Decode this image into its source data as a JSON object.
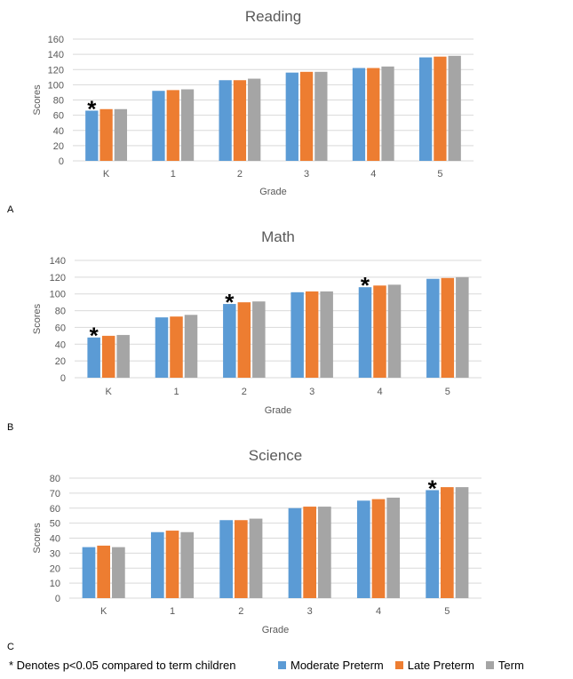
{
  "colors": {
    "moderate": "#5B9BD5",
    "late": "#ED7D31",
    "term": "#A5A5A5",
    "grid": "#D9D9D9",
    "text": "#595959"
  },
  "panels": [
    "A",
    "B",
    "C"
  ],
  "footnote": "* Denotes p<0.05 compared to term children",
  "legend": [
    {
      "name": "Moderate Preterm",
      "color": "#5B9BD5"
    },
    {
      "name": "Late Preterm",
      "color": "#ED7D31"
    },
    {
      "name": "Term",
      "color": "#A5A5A5"
    }
  ],
  "chart_data": [
    {
      "type": "bar",
      "title": "Reading",
      "xlabel": "Grade",
      "ylabel": "Scores",
      "ylim": [
        0,
        160
      ],
      "yticks": [
        0,
        20,
        40,
        60,
        80,
        100,
        120,
        140,
        160
      ],
      "grid": true,
      "categories": [
        "K",
        "1",
        "2",
        "3",
        "4",
        "5"
      ],
      "series": [
        {
          "name": "Moderate Preterm",
          "values": [
            66,
            92,
            106,
            116,
            122,
            136
          ]
        },
        {
          "name": "Late Preterm",
          "values": [
            68,
            93,
            106,
            117,
            122,
            137
          ]
        },
        {
          "name": "Term",
          "values": [
            68,
            94,
            108,
            117,
            124,
            138
          ]
        }
      ],
      "significant": [
        "K"
      ],
      "annotation": "*"
    },
    {
      "type": "bar",
      "title": "Math",
      "xlabel": "Grade",
      "ylabel": "Scores",
      "ylim": [
        0,
        140
      ],
      "yticks": [
        0,
        20,
        40,
        60,
        80,
        100,
        120,
        140
      ],
      "grid": true,
      "categories": [
        "K",
        "1",
        "2",
        "3",
        "4",
        "5"
      ],
      "series": [
        {
          "name": "Moderate Preterm",
          "values": [
            48,
            72,
            88,
            102,
            108,
            118
          ]
        },
        {
          "name": "Late Preterm",
          "values": [
            50,
            73,
            90,
            103,
            110,
            119
          ]
        },
        {
          "name": "Term",
          "values": [
            51,
            75,
            91,
            103,
            111,
            120
          ]
        }
      ],
      "significant": [
        "K",
        "2",
        "4"
      ],
      "annotation": "*"
    },
    {
      "type": "bar",
      "title": "Science",
      "xlabel": "Grade",
      "ylabel": "Scores",
      "ylim": [
        0,
        80
      ],
      "yticks": [
        0,
        10,
        20,
        30,
        40,
        50,
        60,
        70,
        80
      ],
      "grid": true,
      "categories": [
        "K",
        "1",
        "2",
        "3",
        "4",
        "5"
      ],
      "series": [
        {
          "name": "Moderate Preterm",
          "values": [
            34,
            44,
            52,
            60,
            65,
            72
          ]
        },
        {
          "name": "Late Preterm",
          "values": [
            35,
            45,
            52,
            61,
            66,
            74
          ]
        },
        {
          "name": "Term",
          "values": [
            34,
            44,
            53,
            61,
            67,
            74
          ]
        }
      ],
      "significant": [
        "5"
      ],
      "annotation": "*"
    }
  ]
}
